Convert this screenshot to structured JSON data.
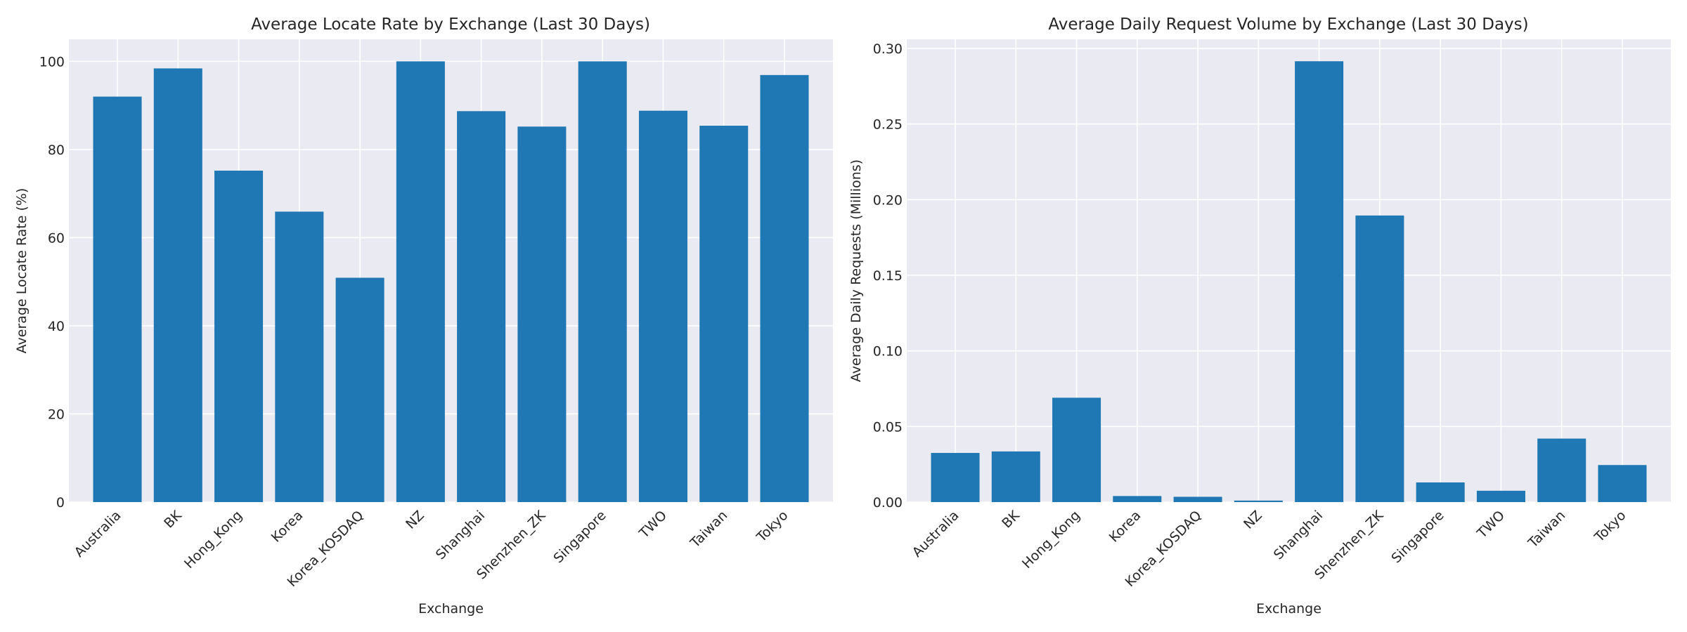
{
  "chart_data": [
    {
      "type": "bar",
      "title": "Average Locate Rate by Exchange (Last 30 Days)",
      "xlabel": "Exchange",
      "ylabel": "Average Locate Rate (%)",
      "ylim": [
        0,
        105
      ],
      "yticks": [
        0,
        20,
        40,
        60,
        80,
        100
      ],
      "ytick_labels": [
        "0",
        "20",
        "40",
        "60",
        "80",
        "100"
      ],
      "grid": true,
      "color": "#1f77b4",
      "categories": [
        "Australia",
        "BK",
        "Hong_Kong",
        "Korea",
        "Korea_KOSDAQ",
        "NZ",
        "Shanghai",
        "Shenzhen_ZK",
        "Singapore",
        "TWO",
        "Taiwan",
        "Tokyo"
      ],
      "values": [
        92.0,
        98.4,
        75.2,
        65.9,
        50.9,
        100.0,
        88.7,
        85.2,
        100.0,
        88.8,
        85.4,
        96.9
      ]
    },
    {
      "type": "bar",
      "title": "Average Daily Request Volume by Exchange (Last 30 Days)",
      "xlabel": "Exchange",
      "ylabel": "Average Daily Requests (Millions)",
      "ylim": [
        0,
        0.306
      ],
      "yticks": [
        0,
        0.05,
        0.1,
        0.15,
        0.2,
        0.25,
        0.3
      ],
      "ytick_labels": [
        "0.00",
        "0.05",
        "0.10",
        "0.15",
        "0.20",
        "0.25",
        "0.30"
      ],
      "grid": true,
      "color": "#1f77b4",
      "categories": [
        "Australia",
        "BK",
        "Hong_Kong",
        "Korea",
        "Korea_KOSDAQ",
        "NZ",
        "Shanghai",
        "Shenzhen_ZK",
        "Singapore",
        "TWO",
        "Taiwan",
        "Tokyo"
      ],
      "values": [
        0.0325,
        0.0335,
        0.069,
        0.004,
        0.0035,
        0.001,
        0.2915,
        0.1895,
        0.013,
        0.0075,
        0.042,
        0.0245
      ]
    }
  ]
}
